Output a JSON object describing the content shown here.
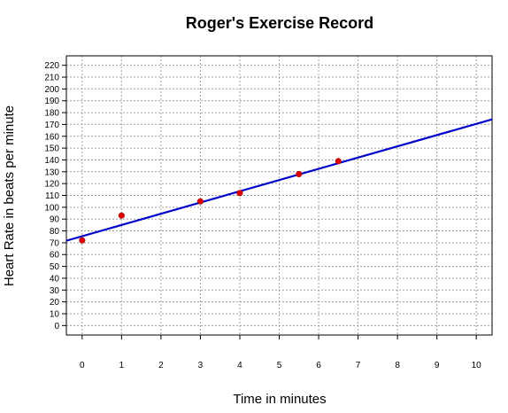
{
  "chart_data": {
    "type": "scatter",
    "title": "Roger's Exercise Record",
    "xlabel": "Time in minutes",
    "ylabel": "Heart Rate in beats per minute",
    "xlim": [
      -0.4,
      10.4
    ],
    "ylim": [
      -8,
      228
    ],
    "x_ticks": [
      0,
      1,
      2,
      3,
      4,
      5,
      6,
      7,
      8,
      9,
      10
    ],
    "y_ticks": [
      0,
      10,
      20,
      30,
      40,
      50,
      60,
      70,
      80,
      90,
      100,
      110,
      120,
      130,
      140,
      150,
      160,
      170,
      180,
      190,
      200,
      210,
      220
    ],
    "grid": true,
    "points": [
      {
        "x": 0,
        "y": 72
      },
      {
        "x": 1,
        "y": 93
      },
      {
        "x": 3,
        "y": 105
      },
      {
        "x": 4,
        "y": 112
      },
      {
        "x": 5.5,
        "y": 128
      },
      {
        "x": 6.5,
        "y": 139
      }
    ],
    "fit_line": {
      "intercept": 75.5,
      "slope": 9.5
    },
    "colors": {
      "points": "#dd0000",
      "line": "#0000cc",
      "grid": "#a0a0a0"
    }
  }
}
